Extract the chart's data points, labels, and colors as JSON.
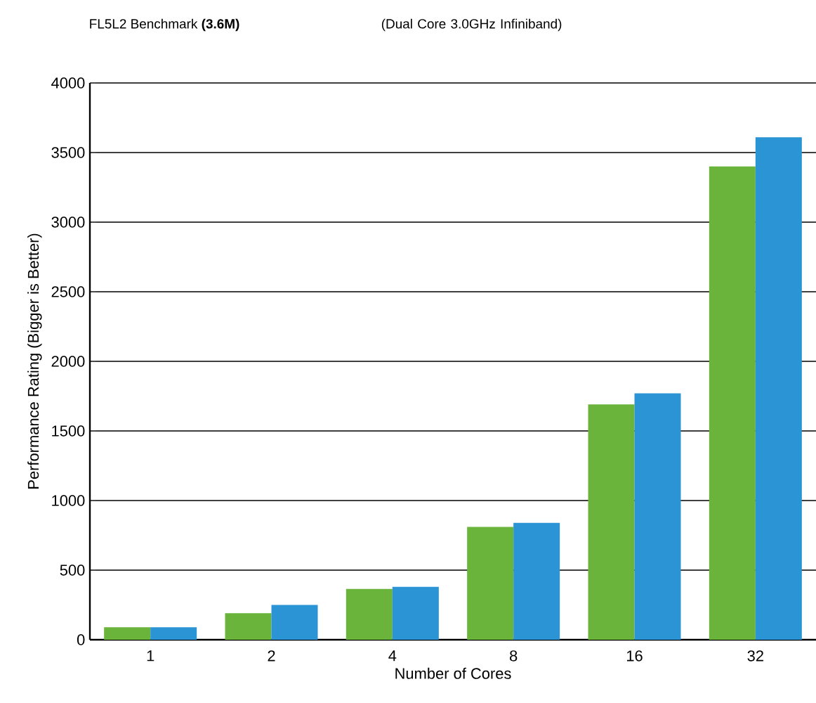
{
  "chart_data": {
    "type": "bar",
    "title": "FL5L2 Benchmark **(3.6M)**",
    "subtitle": "(Dual Core 3.0GHz Infiniband)",
    "xlabel": "Number of Cores",
    "ylabel": "Performance Rating (Bigger is Better)",
    "categories": [
      "1",
      "2",
      "4",
      "8",
      "16",
      "32"
    ],
    "series": [
      {
        "color": "#6ab43c",
        "values": [
          90,
          190,
          365,
          810,
          1690,
          3400
        ]
      },
      {
        "color": "#2a94d4",
        "values": [
          90,
          250,
          380,
          840,
          1770,
          3610
        ]
      }
    ],
    "ylim": [
      0,
      4000
    ],
    "yticks": [
      0,
      500,
      1000,
      1500,
      2000,
      2500,
      3000,
      3500,
      4000
    ],
    "grid": "y"
  }
}
